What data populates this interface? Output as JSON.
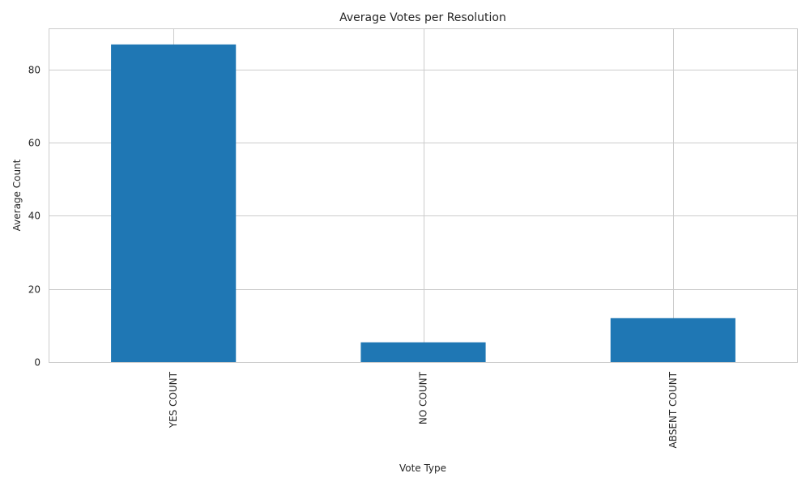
{
  "chart_data": {
    "type": "bar",
    "title": "Average Votes per Resolution",
    "xlabel": "Vote Type",
    "ylabel": "Average Count",
    "categories": [
      "YES COUNT",
      "NO COUNT",
      "ABSENT COUNT"
    ],
    "values": [
      86.8,
      5.4,
      12.0
    ],
    "ylim": [
      0,
      91.2
    ],
    "yticks": [
      0,
      20,
      40,
      60,
      80
    ],
    "grid": true,
    "colors": {
      "bar": "#1f77b4",
      "grid": "#cccccc",
      "text": "#262626"
    }
  }
}
